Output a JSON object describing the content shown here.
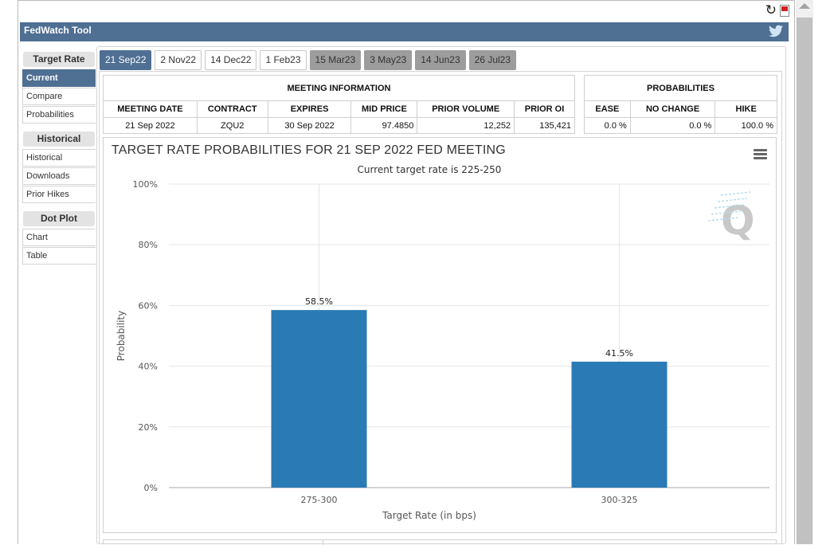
{
  "window": {
    "title": "FedWatch Tool"
  },
  "colors": {
    "brand": "#4f6f93",
    "bar": "#2a7ab5",
    "tab_dim": "#9d9d9d"
  },
  "sidebar": {
    "groups": [
      {
        "heading": "Target Rate",
        "items": [
          {
            "label": "Current",
            "active": true
          },
          {
            "label": "Compare",
            "active": false
          },
          {
            "label": "Probabilities",
            "active": false
          }
        ]
      },
      {
        "heading": "Historical",
        "items": [
          {
            "label": "Historical",
            "active": false
          },
          {
            "label": "Downloads",
            "active": false
          },
          {
            "label": "Prior Hikes",
            "active": false
          }
        ]
      },
      {
        "heading": "Dot Plot",
        "items": [
          {
            "label": "Chart",
            "active": false
          },
          {
            "label": "Table",
            "active": false
          }
        ]
      }
    ]
  },
  "tabs": [
    {
      "label": "21 Sep22",
      "state": "active"
    },
    {
      "label": "2 Nov22",
      "state": "normal"
    },
    {
      "label": "14 Dec22",
      "state": "normal"
    },
    {
      "label": "1 Feb23",
      "state": "normal"
    },
    {
      "label": "15 Mar23",
      "state": "dim"
    },
    {
      "label": "3 May23",
      "state": "dim"
    },
    {
      "label": "14 Jun23",
      "state": "dim"
    },
    {
      "label": "26 Jul23",
      "state": "dim"
    }
  ],
  "meeting_info": {
    "heading": "MEETING INFORMATION",
    "columns": [
      "MEETING DATE",
      "CONTRACT",
      "EXPIRES",
      "MID PRICE",
      "PRIOR VOLUME",
      "PRIOR OI"
    ],
    "row": [
      "21 Sep 2022",
      "ZQU2",
      "30 Sep 2022",
      "97.4850",
      "12,252",
      "135,421"
    ]
  },
  "probabilities": {
    "heading": "PROBABILITIES",
    "columns": [
      "EASE",
      "NO CHANGE",
      "HIKE"
    ],
    "row": [
      "0.0 %",
      "0.0 %",
      "100.0 %"
    ]
  },
  "chart_data": {
    "type": "bar",
    "title": "TARGET RATE PROBABILITIES FOR 21 SEP 2022 FED MEETING",
    "subtitle": "Current target rate is 225-250",
    "categories": [
      "275-300",
      "300-325"
    ],
    "values": [
      58.5,
      41.5
    ],
    "data_labels": [
      "58.5%",
      "41.5%"
    ],
    "xlabel": "Target Rate (in bps)",
    "ylabel": "Probability",
    "ylim": [
      0,
      100
    ],
    "yticks": [
      "0%",
      "20%",
      "40%",
      "60%",
      "80%",
      "100%"
    ],
    "grid": true,
    "watermark": "Q"
  }
}
